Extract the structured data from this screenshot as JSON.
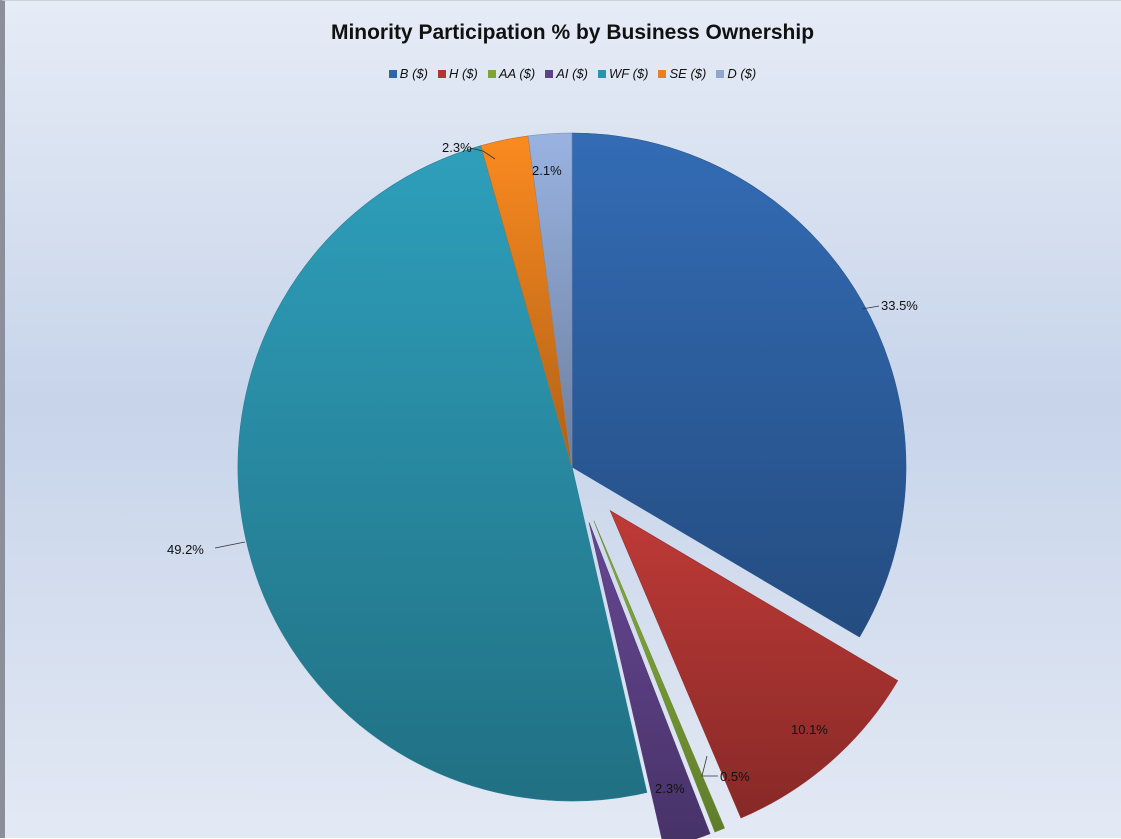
{
  "chart_data": {
    "type": "pie",
    "title": "Minority Participation % by Business Ownership",
    "legend_position": "top",
    "series": [
      {
        "name": "B ($)",
        "value": 33.5,
        "label": "33.5%",
        "color": "#2f64a8",
        "exploded": false
      },
      {
        "name": "H ($)",
        "value": 10.1,
        "label": "10.1%",
        "color": "#b13633",
        "exploded": true
      },
      {
        "name": "AA ($)",
        "value": 0.5,
        "label": "0.5%",
        "color": "#7ea33a",
        "exploded": true
      },
      {
        "name": "AI ($)",
        "value": 2.3,
        "label": "2.3%",
        "color": "#5e4288",
        "exploded": true
      },
      {
        "name": "WF ($)",
        "value": 49.2,
        "label": "49.2%",
        "color": "#2b93ad",
        "exploded": false
      },
      {
        "name": "SE ($)",
        "value": 2.3,
        "label": "2.3%",
        "color": "#e8801e",
        "exploded": false
      },
      {
        "name": "D ($)",
        "value": 2.1,
        "label": "2.1%",
        "color": "#8ea6d0",
        "exploded": false
      }
    ]
  }
}
